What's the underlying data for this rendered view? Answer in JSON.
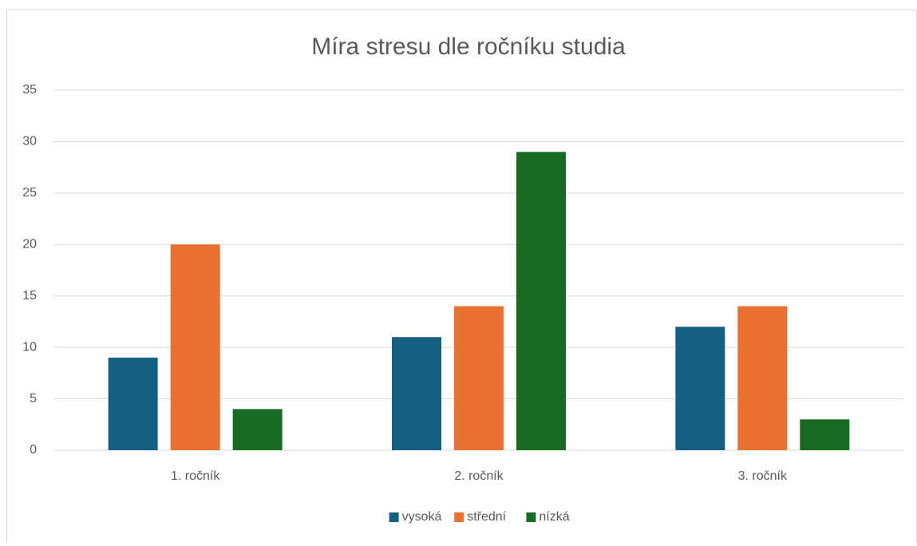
{
  "chart_data": {
    "type": "bar",
    "title": "Míra stresu dle ročníku studia",
    "categories": [
      "1. ročník",
      "2. ročník",
      "3. ročník"
    ],
    "series": [
      {
        "name": "vysoká",
        "color": "#156082",
        "values": [
          9,
          11,
          12
        ]
      },
      {
        "name": "střední",
        "color": "#e97132",
        "values": [
          20,
          14,
          14
        ]
      },
      {
        "name": "nízká",
        "color": "#196b24",
        "values": [
          4,
          29,
          3
        ]
      }
    ],
    "ylim": [
      0,
      35
    ],
    "yticks": [
      0,
      5,
      10,
      15,
      20,
      25,
      30,
      35
    ],
    "grid": true,
    "legend": "bottom"
  }
}
